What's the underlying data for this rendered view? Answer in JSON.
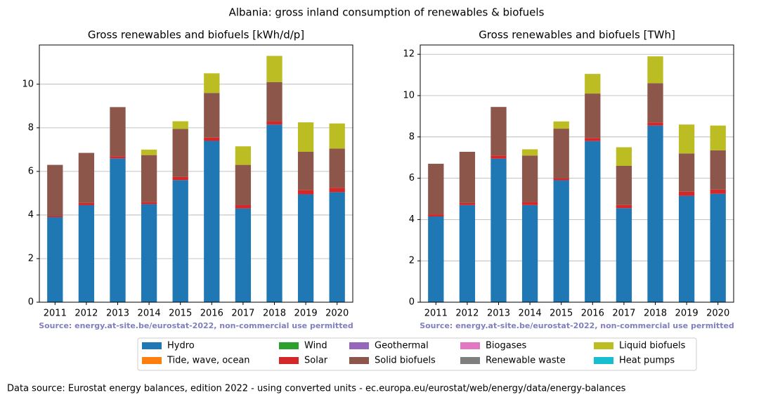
{
  "title": "Albania: gross inland consumption of renewables & biofuels",
  "footer": "Data source: Eurostat energy balances, edition 2022 - using converted units - ec.europa.eu/eurostat/web/energy/data/energy-balances",
  "chart_data": [
    {
      "type": "bar",
      "stacked": true,
      "title": "Gross renewables and biofuels [kWh/d/p]",
      "note": "Source: energy.at-site.be/eurostat-2022, non-commercial use permitted",
      "categories": [
        "2011",
        "2012",
        "2013",
        "2014",
        "2015",
        "2016",
        "2017",
        "2018",
        "2019",
        "2020"
      ],
      "ylim": [
        0,
        11.8
      ],
      "yticks": [
        0,
        2,
        4,
        6,
        8,
        10
      ],
      "grid": true,
      "series": [
        {
          "name": "Hydro",
          "color": "#1f77b4",
          "values": [
            3.9,
            4.45,
            6.6,
            4.5,
            5.6,
            7.4,
            4.3,
            8.15,
            4.95,
            5.05
          ]
        },
        {
          "name": "Tide, wave, ocean",
          "color": "#ff7f0e",
          "values": [
            0,
            0,
            0,
            0,
            0,
            0,
            0,
            0,
            0,
            0
          ]
        },
        {
          "name": "Wind",
          "color": "#2ca02c",
          "values": [
            0,
            0,
            0,
            0,
            0,
            0,
            0,
            0,
            0,
            0
          ]
        },
        {
          "name": "Solar",
          "color": "#d62728",
          "values": [
            0.05,
            0.1,
            0.1,
            0.1,
            0.15,
            0.15,
            0.15,
            0.15,
            0.2,
            0.2
          ]
        },
        {
          "name": "Geothermal",
          "color": "#9467bd",
          "values": [
            0,
            0,
            0,
            0,
            0,
            0,
            0,
            0,
            0,
            0
          ]
        },
        {
          "name": "Solid biofuels",
          "color": "#8c564b",
          "values": [
            2.35,
            2.3,
            2.25,
            2.15,
            2.2,
            2.05,
            1.85,
            1.8,
            1.75,
            1.8
          ]
        },
        {
          "name": "Biogases",
          "color": "#e377c2",
          "values": [
            0,
            0,
            0,
            0,
            0,
            0,
            0,
            0,
            0,
            0
          ]
        },
        {
          "name": "Renewable waste",
          "color": "#7f7f7f",
          "values": [
            0,
            0,
            0,
            0,
            0,
            0,
            0,
            0,
            0,
            0
          ]
        },
        {
          "name": "Liquid biofuels",
          "color": "#bcbd22",
          "values": [
            0,
            0,
            0,
            0.25,
            0.35,
            0.9,
            0.85,
            1.2,
            1.35,
            1.15
          ]
        },
        {
          "name": "Heat pumps",
          "color": "#17becf",
          "values": [
            0,
            0,
            0,
            0,
            0,
            0,
            0,
            0,
            0,
            0
          ]
        }
      ]
    },
    {
      "type": "bar",
      "stacked": true,
      "title": "Gross renewables and biofuels [TWh]",
      "note": "Source: energy.at-site.be/eurostat-2022, non-commercial use permitted",
      "categories": [
        "2011",
        "2012",
        "2013",
        "2014",
        "2015",
        "2016",
        "2017",
        "2018",
        "2019",
        "2020"
      ],
      "ylim": [
        0,
        12.45
      ],
      "yticks": [
        0,
        2,
        4,
        6,
        8,
        10,
        12
      ],
      "grid": true,
      "series": [
        {
          "name": "Hydro",
          "color": "#1f77b4",
          "values": [
            4.15,
            4.7,
            6.95,
            4.7,
            5.9,
            7.8,
            4.55,
            8.55,
            5.15,
            5.25
          ]
        },
        {
          "name": "Tide, wave, ocean",
          "color": "#ff7f0e",
          "values": [
            0,
            0,
            0,
            0,
            0,
            0,
            0,
            0,
            0,
            0
          ]
        },
        {
          "name": "Wind",
          "color": "#2ca02c",
          "values": [
            0,
            0,
            0,
            0,
            0,
            0,
            0,
            0,
            0,
            0
          ]
        },
        {
          "name": "Solar",
          "color": "#d62728",
          "values": [
            0.1,
            0.1,
            0.15,
            0.15,
            0.1,
            0.15,
            0.15,
            0.15,
            0.2,
            0.2
          ]
        },
        {
          "name": "Geothermal",
          "color": "#9467bd",
          "values": [
            0,
            0,
            0,
            0,
            0,
            0,
            0,
            0,
            0,
            0
          ]
        },
        {
          "name": "Solid biofuels",
          "color": "#8c564b",
          "values": [
            2.45,
            2.48,
            2.35,
            2.25,
            2.4,
            2.15,
            1.9,
            1.9,
            1.85,
            1.9
          ]
        },
        {
          "name": "Biogases",
          "color": "#e377c2",
          "values": [
            0,
            0,
            0,
            0,
            0,
            0,
            0,
            0,
            0,
            0
          ]
        },
        {
          "name": "Renewable waste",
          "color": "#7f7f7f",
          "values": [
            0,
            0,
            0,
            0,
            0,
            0,
            0,
            0,
            0,
            0
          ]
        },
        {
          "name": "Liquid biofuels",
          "color": "#bcbd22",
          "values": [
            0,
            0,
            0,
            0.3,
            0.35,
            0.95,
            0.9,
            1.3,
            1.4,
            1.2
          ]
        },
        {
          "name": "Heat pumps",
          "color": "#17becf",
          "values": [
            0,
            0,
            0,
            0,
            0,
            0,
            0,
            0,
            0,
            0
          ]
        }
      ]
    }
  ]
}
